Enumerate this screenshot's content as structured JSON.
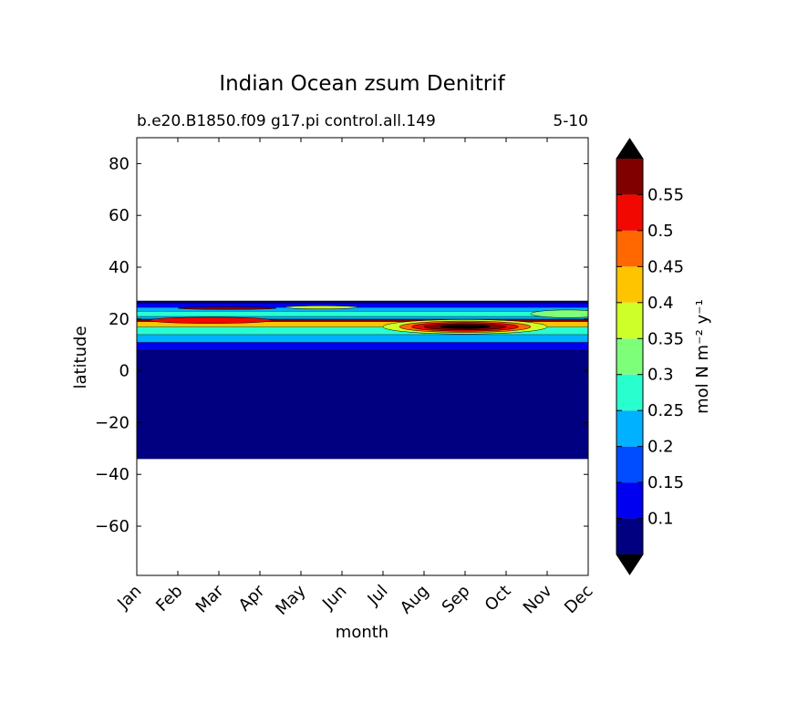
{
  "chart_data": {
    "type": "heatmap",
    "title": "Indian Ocean zsum Denitrif",
    "subtitle_left": "b.e20.B1850.f09 g17.pi control.all.149",
    "subtitle_right": "5-10",
    "xlabel": "month",
    "ylabel": "latitude",
    "x_ticks": [
      "Jan",
      "Feb",
      "Mar",
      "Apr",
      "May",
      "Jun",
      "Jul",
      "Aug",
      "Sep",
      "Oct",
      "Nov",
      "Dec"
    ],
    "y_ticks": [
      80,
      60,
      40,
      20,
      0,
      -20,
      -40,
      -60
    ],
    "y_tick_labels": [
      "80",
      "60",
      "40",
      "20",
      "0",
      "−20",
      "−40",
      "−60"
    ],
    "ylim": [
      -79,
      90
    ],
    "data_lat_range": [
      -34,
      27
    ],
    "colorbar": {
      "label": "mol N m⁻² y⁻¹",
      "extend": "both",
      "levels": [
        0.05,
        0.1,
        0.15,
        0.2,
        0.25,
        0.3,
        0.35,
        0.4,
        0.45,
        0.5,
        0.55,
        0.6
      ],
      "tick_values": [
        0.1,
        0.15,
        0.2,
        0.25,
        0.3,
        0.35,
        0.4,
        0.45,
        0.5,
        0.55
      ],
      "tick_labels": [
        "0.1",
        "0.15",
        "0.2",
        "0.25",
        "0.3",
        "0.35",
        "0.4",
        "0.45",
        "0.5",
        "0.55"
      ],
      "colors": [
        "#000080",
        "#0000f1",
        "#004dff",
        "#00b1ff",
        "#29ffce",
        "#7dff7a",
        "#ceff29",
        "#ffc400",
        "#ff6800",
        "#f10800",
        "#800000"
      ],
      "under_color": "#000000",
      "over_color": "#000000"
    },
    "bands": [
      {
        "lat": [
          -34,
          8
        ],
        "value": 0.05,
        "months": [
          1,
          12
        ]
      },
      {
        "lat": [
          8,
          11
        ],
        "value": 0.12,
        "months": [
          1,
          12
        ]
      },
      {
        "lat": [
          11,
          14
        ],
        "value": 0.22,
        "months": [
          1,
          12
        ]
      },
      {
        "lat": [
          14,
          17
        ],
        "value": 0.28,
        "months": [
          1,
          12
        ]
      },
      {
        "lat": [
          17,
          19
        ],
        "value": 0.42,
        "months": [
          1,
          12
        ]
      },
      {
        "lat": [
          19,
          20
        ],
        "value": 0.57,
        "months": [
          1,
          12
        ]
      },
      {
        "lat": [
          20,
          21
        ],
        "value": 0.2,
        "months": [
          1,
          12
        ]
      },
      {
        "lat": [
          21,
          23
        ],
        "value": 0.27,
        "months": [
          1,
          12
        ]
      },
      {
        "lat": [
          23,
          24.5
        ],
        "value": 0.22,
        "months": [
          1,
          12
        ]
      },
      {
        "lat": [
          24.5,
          26
        ],
        "value": 0.12,
        "months": [
          1,
          12
        ]
      },
      {
        "lat": [
          26,
          27
        ],
        "value": 0.05,
        "months": [
          1,
          12
        ]
      }
    ],
    "features": [
      {
        "month": 2.8,
        "lat": 19.5,
        "lat_halfwidth": 1.2,
        "month_halfwidth": 1.5,
        "value": 0.5
      },
      {
        "month": 3.2,
        "lat": 24.2,
        "lat_halfwidth": 0.5,
        "month_halfwidth": 1.2,
        "value": 0.55
      },
      {
        "month": 5.5,
        "lat": 24.5,
        "lat_halfwidth": 0.6,
        "month_halfwidth": 0.9,
        "value": 0.35
      },
      {
        "month": 9,
        "lat": 17,
        "lat_halfwidth": 2.8,
        "month_halfwidth": 2.0,
        "value": 0.35
      },
      {
        "month": 9,
        "lat": 17,
        "lat_halfwidth": 2.2,
        "month_halfwidth": 1.6,
        "value": 0.45
      },
      {
        "month": 9,
        "lat": 17,
        "lat_halfwidth": 1.7,
        "month_halfwidth": 1.3,
        "value": 0.52
      },
      {
        "month": 9,
        "lat": 17,
        "lat_halfwidth": 1.2,
        "month_halfwidth": 1.0,
        "value": 0.58
      },
      {
        "month": 9,
        "lat": 17,
        "lat_halfwidth": 0.7,
        "month_halfwidth": 0.6,
        "value": 0.62
      },
      {
        "month": 11.5,
        "lat": 22,
        "lat_halfwidth": 1.5,
        "month_halfwidth": 0.9,
        "value": 0.3
      }
    ]
  }
}
